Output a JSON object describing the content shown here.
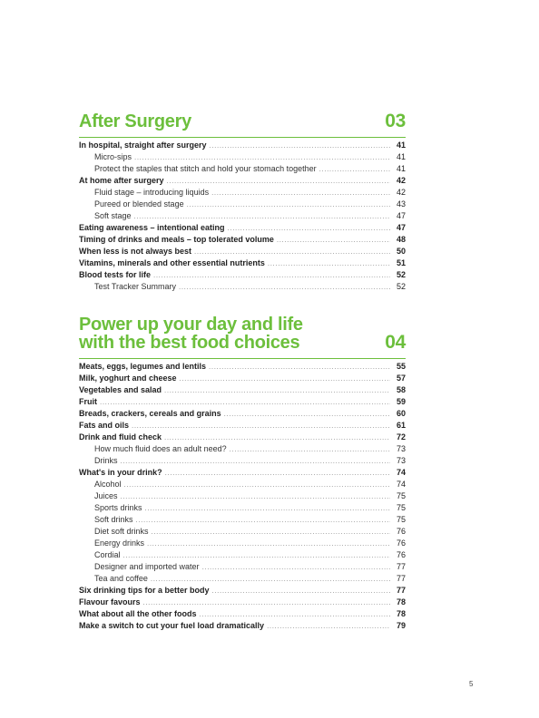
{
  "sections": [
    {
      "title": "After Surgery",
      "number": "03",
      "entries": [
        {
          "label": "In hospital, straight after surgery",
          "page": "41",
          "level": "main"
        },
        {
          "label": "Micro-sips",
          "page": "41",
          "level": "sub"
        },
        {
          "label": "Protect the staples that stitch and hold your stomach together",
          "page": "41",
          "level": "sub"
        },
        {
          "label": "At home after surgery",
          "page": "42",
          "level": "main"
        },
        {
          "label": "Fluid stage – introducing liquids",
          "page": "42",
          "level": "sub"
        },
        {
          "label": "Pureed or blended stage",
          "page": "43",
          "level": "sub"
        },
        {
          "label": "Soft stage",
          "page": "47",
          "level": "sub"
        },
        {
          "label": "Eating awareness – intentional eating",
          "page": "47",
          "level": "main"
        },
        {
          "label": "Timing of drinks and meals – top tolerated volume",
          "page": "48",
          "level": "main"
        },
        {
          "label": "When less is not always best",
          "page": "50",
          "level": "main"
        },
        {
          "label": "Vitamins, minerals and other essential nutrients",
          "page": "51",
          "level": "main"
        },
        {
          "label": "Blood tests for life",
          "page": "52",
          "level": "main"
        },
        {
          "label": "Test Tracker Summary",
          "page": "52",
          "level": "sub"
        }
      ]
    },
    {
      "title": "Power up your day and life\nwith the best food choices",
      "number": "04",
      "entries": [
        {
          "label": "Meats, eggs, legumes and lentils",
          "page": "55",
          "level": "main"
        },
        {
          "label": "Milk, yoghurt and cheese",
          "page": "57",
          "level": "main"
        },
        {
          "label": "Vegetables and salad",
          "page": "58",
          "level": "main"
        },
        {
          "label": "Fruit",
          "page": "59",
          "level": "main"
        },
        {
          "label": "Breads, crackers, cereals and grains",
          "page": "60",
          "level": "main"
        },
        {
          "label": "Fats and oils",
          "page": "61",
          "level": "main"
        },
        {
          "label": "Drink and fluid check",
          "page": "72",
          "level": "main"
        },
        {
          "label": "How much fluid does an adult need?",
          "page": "73",
          "level": "sub"
        },
        {
          "label": "Drinks",
          "page": "73",
          "level": "sub"
        },
        {
          "label": "What's in your drink?",
          "page": "74",
          "level": "main"
        },
        {
          "label": "Alcohol",
          "page": "74",
          "level": "sub"
        },
        {
          "label": "Juices",
          "page": "75",
          "level": "sub"
        },
        {
          "label": "Sports drinks",
          "page": "75",
          "level": "sub"
        },
        {
          "label": "Soft drinks",
          "page": "75",
          "level": "sub"
        },
        {
          "label": "Diet soft drinks",
          "page": "76",
          "level": "sub"
        },
        {
          "label": "Energy drinks",
          "page": "76",
          "level": "sub"
        },
        {
          "label": "Cordial",
          "page": "76",
          "level": "sub"
        },
        {
          "label": "Designer and imported water",
          "page": "77",
          "level": "sub"
        },
        {
          "label": "Tea and coffee",
          "page": "77",
          "level": "sub"
        },
        {
          "label": "Six drinking tips for a better body",
          "page": "77",
          "level": "main"
        },
        {
          "label": "Flavour favours",
          "page": "78",
          "level": "main"
        },
        {
          "label": "What about all the other foods",
          "page": "78",
          "level": "main"
        },
        {
          "label": "Make a switch to cut your fuel load dramatically",
          "page": "79",
          "level": "main"
        }
      ]
    }
  ],
  "page_number": "5",
  "colors": {
    "accent": "#6cbf3c",
    "text": "#1f1f1f"
  }
}
